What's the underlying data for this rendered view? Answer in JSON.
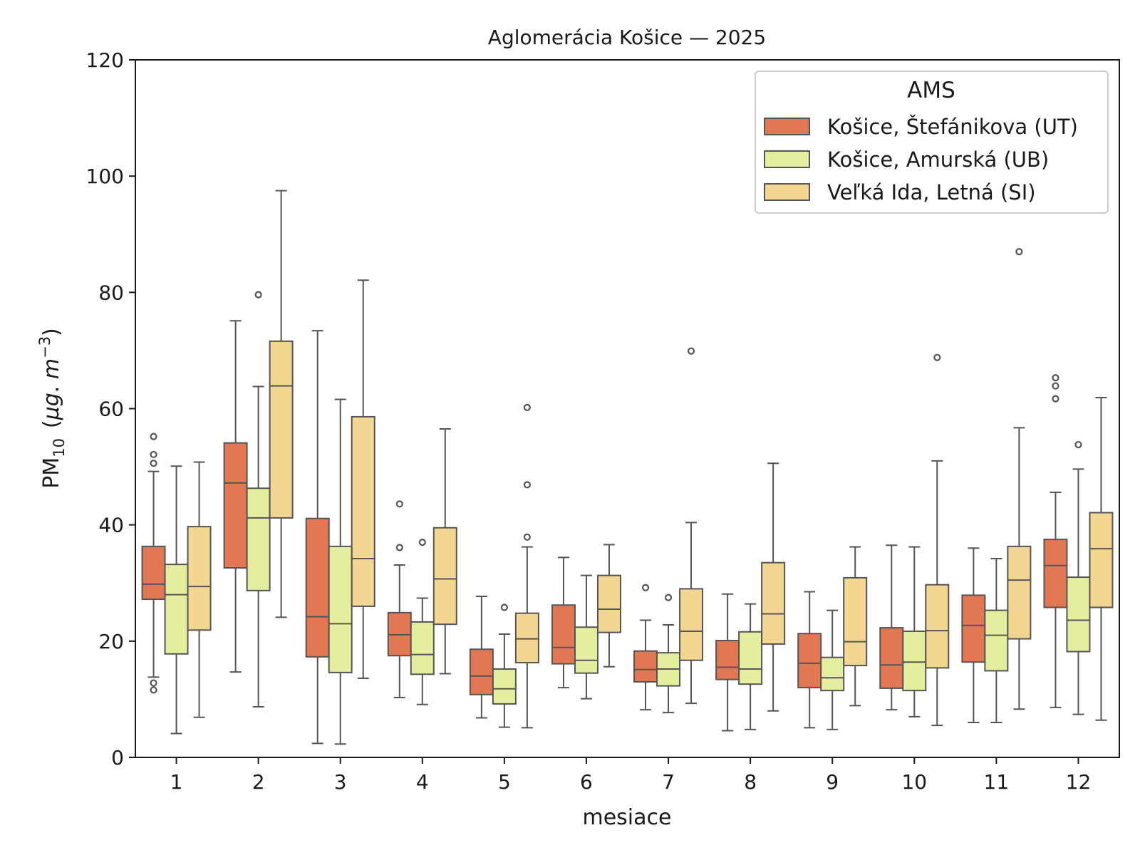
{
  "chart_data": {
    "type": "box",
    "title": "Aglomerácia Košice —  2025",
    "xlabel": "mesiace",
    "ylabel": {
      "main": "PM",
      "sub": "10",
      "unit_open": "(",
      "unit_mu": "μg",
      "unit_dot": ". ",
      "unit_m": "m",
      "unit_exp": "−3",
      "unit_close": ")"
    },
    "ylim": [
      0,
      120
    ],
    "yticks": [
      "0",
      "20",
      "40",
      "60",
      "80",
      "100",
      "120"
    ],
    "categories": [
      "1",
      "2",
      "3",
      "4",
      "5",
      "6",
      "7",
      "8",
      "9",
      "10",
      "11",
      "12"
    ],
    "legend": {
      "title": "AMS",
      "position": "top-right"
    },
    "series": [
      {
        "name": "Košice, Štefánikova (UT)",
        "color": "#e27853",
        "boxes": [
          {
            "whislo": 13.8,
            "q1": 27.2,
            "med": 29.8,
            "q3": 36.3,
            "whishi": 49.2,
            "fliers": [
              11.6,
              12.8,
              50.6,
              52.1,
              55.2
            ]
          },
          {
            "whislo": 14.7,
            "q1": 32.6,
            "med": 47.2,
            "q3": 54.1,
            "whishi": 75.1,
            "fliers": []
          },
          {
            "whislo": 2.4,
            "q1": 17.3,
            "med": 24.2,
            "q3": 41.1,
            "whishi": 73.4,
            "fliers": []
          },
          {
            "whislo": 10.3,
            "q1": 17.5,
            "med": 21.1,
            "q3": 24.9,
            "whishi": 33.1,
            "fliers": [
              36.1,
              43.6
            ]
          },
          {
            "whislo": 6.8,
            "q1": 10.8,
            "med": 14.0,
            "q3": 18.6,
            "whishi": 27.7,
            "fliers": []
          },
          {
            "whislo": 12.0,
            "q1": 16.1,
            "med": 18.9,
            "q3": 26.2,
            "whishi": 34.4,
            "fliers": []
          },
          {
            "whislo": 8.2,
            "q1": 13.0,
            "med": 15.1,
            "q3": 18.3,
            "whishi": 23.6,
            "fliers": [
              29.2
            ]
          },
          {
            "whislo": 4.6,
            "q1": 13.4,
            "med": 15.5,
            "q3": 20.1,
            "whishi": 28.1,
            "fliers": []
          },
          {
            "whislo": 5.1,
            "q1": 12.0,
            "med": 16.2,
            "q3": 21.3,
            "whishi": 28.5,
            "fliers": []
          },
          {
            "whislo": 8.2,
            "q1": 11.9,
            "med": 15.9,
            "q3": 22.3,
            "whishi": 36.5,
            "fliers": []
          },
          {
            "whislo": 6.0,
            "q1": 16.4,
            "med": 22.7,
            "q3": 27.9,
            "whishi": 36.0,
            "fliers": []
          },
          {
            "whislo": 8.6,
            "q1": 25.8,
            "med": 33.0,
            "q3": 37.5,
            "whishi": 45.6,
            "fliers": [
              61.7,
              63.9,
              65.3
            ]
          }
        ]
      },
      {
        "name": "Košice, Amurská (UB)",
        "color": "#e3ee9e",
        "boxes": [
          {
            "whislo": 4.1,
            "q1": 17.8,
            "med": 28.0,
            "q3": 33.2,
            "whishi": 50.1,
            "fliers": []
          },
          {
            "whislo": 8.7,
            "q1": 28.7,
            "med": 41.2,
            "q3": 46.3,
            "whishi": 63.8,
            "fliers": [
              79.6
            ]
          },
          {
            "whislo": 2.3,
            "q1": 14.6,
            "med": 23.0,
            "q3": 36.3,
            "whishi": 61.6,
            "fliers": []
          },
          {
            "whislo": 9.1,
            "q1": 14.3,
            "med": 17.7,
            "q3": 23.3,
            "whishi": 27.4,
            "fliers": [
              37.0
            ]
          },
          {
            "whislo": 5.2,
            "q1": 9.2,
            "med": 11.8,
            "q3": 15.2,
            "whishi": 21.2,
            "fliers": [
              25.8
            ]
          },
          {
            "whislo": 10.1,
            "q1": 14.5,
            "med": 16.7,
            "q3": 22.4,
            "whishi": 31.3,
            "fliers": []
          },
          {
            "whislo": 7.7,
            "q1": 12.3,
            "med": 15.2,
            "q3": 18.0,
            "whishi": 22.8,
            "fliers": [
              27.5
            ]
          },
          {
            "whislo": 4.8,
            "q1": 12.6,
            "med": 15.2,
            "q3": 21.6,
            "whishi": 26.4,
            "fliers": []
          },
          {
            "whislo": 4.8,
            "q1": 11.5,
            "med": 13.7,
            "q3": 17.2,
            "whishi": 25.3,
            "fliers": []
          },
          {
            "whislo": 7.0,
            "q1": 11.5,
            "med": 16.4,
            "q3": 21.7,
            "whishi": 36.2,
            "fliers": []
          },
          {
            "whislo": 6.0,
            "q1": 14.9,
            "med": 21.0,
            "q3": 25.3,
            "whishi": 34.2,
            "fliers": []
          },
          {
            "whislo": 7.4,
            "q1": 18.2,
            "med": 23.6,
            "q3": 31.0,
            "whishi": 49.6,
            "fliers": [
              53.8
            ]
          }
        ]
      },
      {
        "name": "Veľká Ida, Letná (SI)",
        "color": "#f2d692",
        "boxes": [
          {
            "whislo": 6.9,
            "q1": 21.9,
            "med": 29.4,
            "q3": 39.7,
            "whishi": 50.8,
            "fliers": []
          },
          {
            "whislo": 24.1,
            "q1": 41.2,
            "med": 63.9,
            "q3": 71.6,
            "whishi": 97.5,
            "fliers": []
          },
          {
            "whislo": 13.6,
            "q1": 26.0,
            "med": 34.2,
            "q3": 58.6,
            "whishi": 82.1,
            "fliers": []
          },
          {
            "whislo": 14.4,
            "q1": 22.9,
            "med": 30.7,
            "q3": 39.5,
            "whishi": 56.5,
            "fliers": []
          },
          {
            "whislo": 5.1,
            "q1": 16.3,
            "med": 20.4,
            "q3": 24.8,
            "whishi": 36.2,
            "fliers": [
              37.9,
              46.9,
              60.2
            ]
          },
          {
            "whislo": 15.6,
            "q1": 21.5,
            "med": 25.5,
            "q3": 31.3,
            "whishi": 36.6,
            "fliers": []
          },
          {
            "whislo": 9.3,
            "q1": 16.7,
            "med": 21.7,
            "q3": 29.0,
            "whishi": 40.4,
            "fliers": [
              69.9
            ]
          },
          {
            "whislo": 8.0,
            "q1": 19.5,
            "med": 24.7,
            "q3": 33.5,
            "whishi": 50.6,
            "fliers": []
          },
          {
            "whislo": 8.9,
            "q1": 15.8,
            "med": 19.9,
            "q3": 30.9,
            "whishi": 36.2,
            "fliers": []
          },
          {
            "whislo": 5.5,
            "q1": 15.4,
            "med": 21.8,
            "q3": 29.7,
            "whishi": 51.0,
            "fliers": [
              68.8
            ]
          },
          {
            "whislo": 8.3,
            "q1": 20.4,
            "med": 30.5,
            "q3": 36.3,
            "whishi": 56.7,
            "fliers": [
              87.0
            ]
          },
          {
            "whislo": 6.4,
            "q1": 25.8,
            "med": 35.9,
            "q3": 42.1,
            "whishi": 61.9,
            "fliers": []
          }
        ]
      }
    ]
  }
}
